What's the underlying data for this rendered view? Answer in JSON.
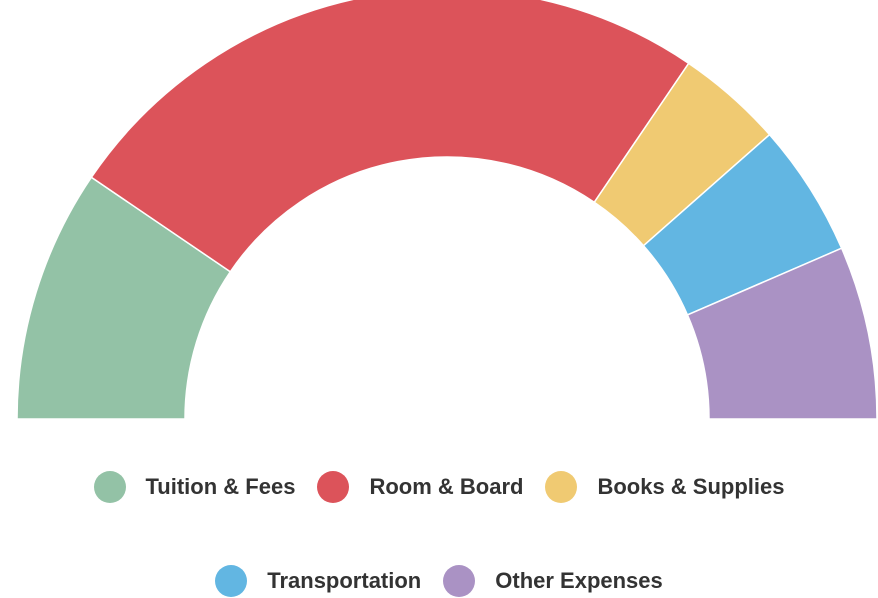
{
  "chart_data": {
    "type": "pie",
    "half_donut": true,
    "categories": [
      "Tuition & Fees",
      "Room & Board",
      "Books & Supplies",
      "Transportation",
      "Other Expenses"
    ],
    "values": [
      19,
      50,
      8,
      10,
      13
    ],
    "colors": [
      "#93c2a6",
      "#dc535a",
      "#f0ca72",
      "#62b6e2",
      "#aa92c4"
    ]
  }
}
